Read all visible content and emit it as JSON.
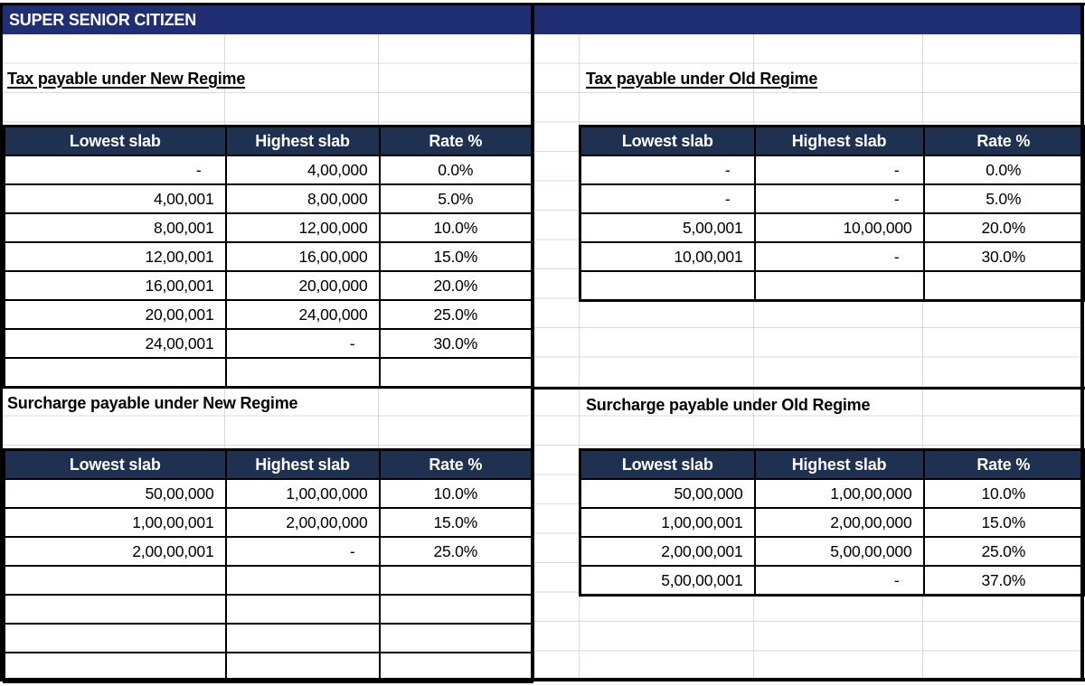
{
  "colors": {
    "banner_bg": "#202F73",
    "table_header_bg": "#1F3150",
    "grid_line": "#D9D9D9",
    "border": "#000000"
  },
  "banner": {
    "title": "SUPER SENIOR CITIZEN"
  },
  "sections": {
    "tax_new": {
      "title": "Tax payable under New Regime"
    },
    "tax_old": {
      "title": "Tax payable under Old Regime"
    },
    "surcharge_new": {
      "title": "Surcharge payable under New Regime"
    },
    "surcharge_old": {
      "title": "Surcharge payable under Old Regime"
    }
  },
  "tables": {
    "tax_new": {
      "headers": [
        "Lowest slab",
        "Highest slab",
        "Rate %"
      ],
      "rows": [
        [
          "-",
          "4,00,000",
          "0.0%"
        ],
        [
          "4,00,001",
          "8,00,000",
          "5.0%"
        ],
        [
          "8,00,001",
          "12,00,000",
          "10.0%"
        ],
        [
          "12,00,001",
          "16,00,000",
          "15.0%"
        ],
        [
          "16,00,001",
          "20,00,000",
          "20.0%"
        ],
        [
          "20,00,001",
          "24,00,000",
          "25.0%"
        ],
        [
          "24,00,001",
          "-",
          "30.0%"
        ]
      ],
      "empty_rows": 1
    },
    "tax_old": {
      "headers": [
        "Lowest slab",
        "Highest slab",
        "Rate %"
      ],
      "rows": [
        [
          "-",
          "-",
          "0.0%"
        ],
        [
          "-",
          "-",
          "5.0%"
        ],
        [
          "5,00,001",
          "10,00,000",
          "20.0%"
        ],
        [
          "10,00,001",
          "-",
          "30.0%"
        ]
      ],
      "empty_rows": 1
    },
    "surcharge_new": {
      "headers": [
        "Lowest slab",
        "Highest slab",
        "Rate %"
      ],
      "rows": [
        [
          "50,00,000",
          "1,00,00,000",
          "10.0%"
        ],
        [
          "1,00,00,001",
          "2,00,00,000",
          "15.0%"
        ],
        [
          "2,00,00,001",
          "-",
          "25.0%"
        ]
      ],
      "empty_rows": 4
    },
    "surcharge_old": {
      "headers": [
        "Lowest slab",
        "Highest slab",
        "Rate %"
      ],
      "rows": [
        [
          "50,00,000",
          "1,00,00,000",
          "10.0%"
        ],
        [
          "1,00,00,001",
          "2,00,00,000",
          "15.0%"
        ],
        [
          "2,00,00,001",
          "5,00,00,000",
          "25.0%"
        ],
        [
          "5,00,00,001",
          "-",
          "37.0%"
        ]
      ],
      "empty_rows": 0
    }
  }
}
